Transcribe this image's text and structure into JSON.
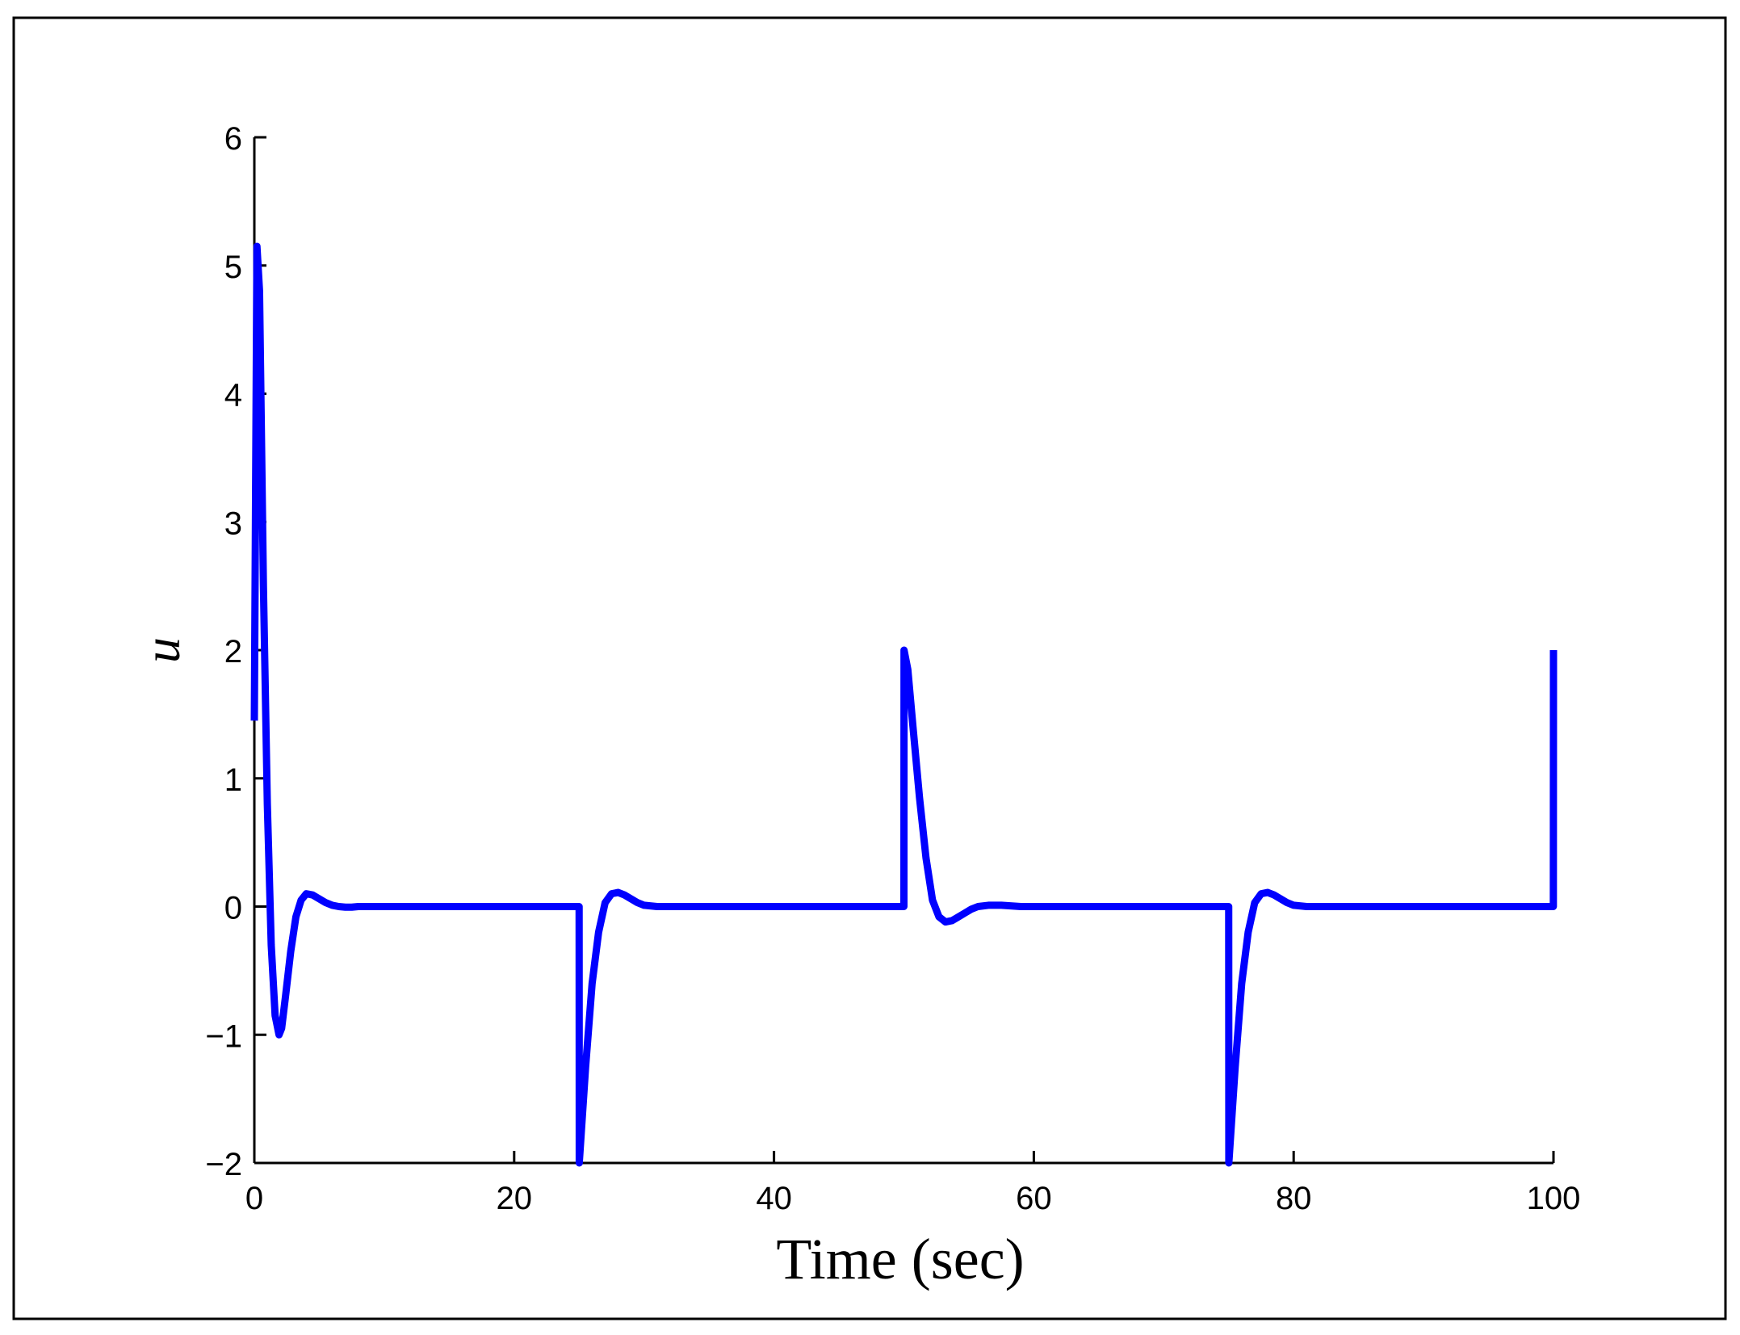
{
  "chart_data": {
    "type": "line",
    "title": "",
    "xlabel": "Time (sec)",
    "ylabel": "u",
    "xlim": [
      0,
      100
    ],
    "ylim": [
      -2,
      6
    ],
    "xticks": [
      0,
      20,
      40,
      60,
      80,
      100
    ],
    "xtick_labels": [
      "0",
      "20",
      "40",
      "60",
      "80",
      "100"
    ],
    "yticks": [
      -2,
      -1,
      0,
      1,
      2,
      3,
      4,
      5,
      6
    ],
    "ytick_labels": [
      "−2",
      "−1",
      "0",
      "1",
      "2",
      "3",
      "4",
      "5",
      "6"
    ],
    "grid": false,
    "legend": "none",
    "series": [
      {
        "color": "#0000ff",
        "x": [
          0,
          0.2,
          0.4,
          0.7,
          1.0,
          1.3,
          1.6,
          1.9,
          2.1,
          2.4,
          2.8,
          3.2,
          3.6,
          4.0,
          4.5,
          5.0,
          5.5,
          6.0,
          6.5,
          7.0,
          7.5,
          8.0,
          9.0,
          10.0,
          25.0,
          25.01,
          25.5,
          26.0,
          26.5,
          27.0,
          27.5,
          28.0,
          28.5,
          29.0,
          29.5,
          30.0,
          31.0,
          32.0,
          33.0,
          34.0,
          50.0,
          50.01,
          50.3,
          50.7,
          51.2,
          51.7,
          52.2,
          52.7,
          53.2,
          53.7,
          54.2,
          54.7,
          55.2,
          55.7,
          56.5,
          57.5,
          59.0,
          61.0,
          63.0,
          75.0,
          75.01,
          75.5,
          76.0,
          76.5,
          77.0,
          77.5,
          78.0,
          78.5,
          79.0,
          79.5,
          80.0,
          81.0,
          82.0,
          83.0,
          84.0,
          99.99,
          100.0
        ],
        "y": [
          1.45,
          5.15,
          4.8,
          2.5,
          0.8,
          -0.3,
          -0.85,
          -1.0,
          -0.95,
          -0.7,
          -0.35,
          -0.08,
          0.05,
          0.1,
          0.09,
          0.06,
          0.03,
          0.01,
          0.0,
          -0.005,
          -0.005,
          0.0,
          0.0,
          0.0,
          0.0,
          -2.0,
          -1.25,
          -0.6,
          -0.2,
          0.03,
          0.1,
          0.11,
          0.09,
          0.06,
          0.03,
          0.01,
          0.0,
          0.0,
          0.0,
          0.0,
          0.0,
          2.0,
          1.85,
          1.4,
          0.85,
          0.38,
          0.05,
          -0.08,
          -0.12,
          -0.11,
          -0.08,
          -0.05,
          -0.02,
          0.0,
          0.01,
          0.01,
          0.0,
          0.0,
          0.0,
          0.0,
          -2.0,
          -1.25,
          -0.6,
          -0.2,
          0.03,
          0.1,
          0.11,
          0.09,
          0.06,
          0.03,
          0.01,
          0.0,
          0.0,
          0.0,
          0.0,
          0.0,
          2.0
        ]
      }
    ]
  }
}
